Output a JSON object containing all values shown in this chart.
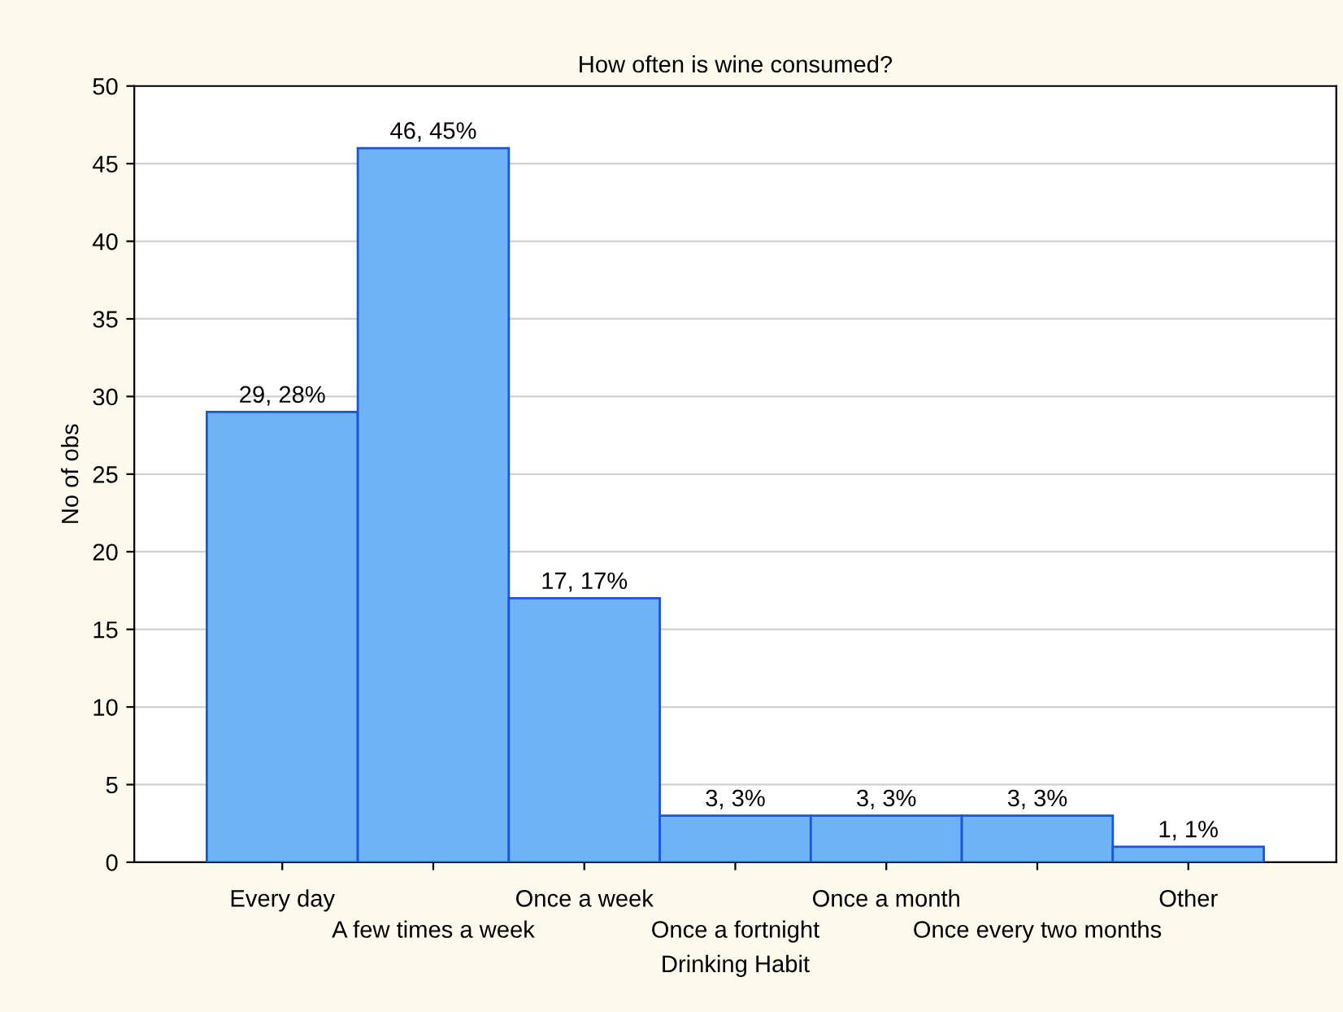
{
  "chart_data": {
    "type": "bar",
    "title": "How often is wine consumed?",
    "xlabel": "Drinking Habit",
    "ylabel": "No of obs",
    "categories": [
      "Every day",
      "A few times a week",
      "Once a week",
      "Once a fortnight",
      "Once a month",
      "Once every two months",
      "Other"
    ],
    "values": [
      29,
      46,
      17,
      3,
      3,
      3,
      1
    ],
    "value_labels": [
      "29, 28%",
      "46, 45%",
      "17, 17%",
      "3, 3%",
      "3, 3%",
      "3, 3%",
      "1, 1%"
    ],
    "color": "#6fb3f7",
    "ylim": [
      0,
      50
    ],
    "yticks": [
      0,
      5,
      10,
      15,
      20,
      25,
      30,
      35,
      40,
      45,
      50
    ],
    "grid": "y",
    "legend": false
  }
}
